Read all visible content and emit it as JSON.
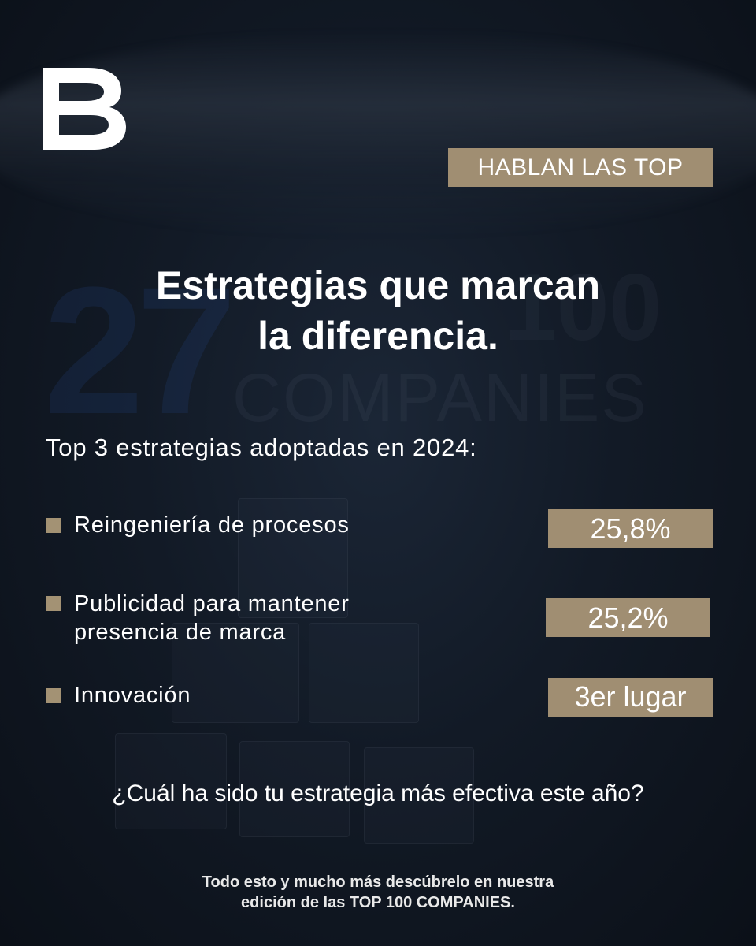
{
  "logo_letter": "B",
  "tag": "HABLAN LAS TOP",
  "title_line1": "Estrategias que marcan",
  "title_line2": "la diferencia.",
  "background_text": {
    "number": "27",
    "top100": "100",
    "companies": "COMPANIES"
  },
  "subtitle": "Top 3 estrategias adoptadas en 2024:",
  "strategies": [
    {
      "label_line1": "Reingeniería de procesos",
      "label_line2": "",
      "value": "25,8%"
    },
    {
      "label_line1": "Publicidad para mantener",
      "label_line2": "presencia de marca",
      "value": "25,2%"
    },
    {
      "label_line1": "Innovación",
      "label_line2": "",
      "value": "3er lugar"
    }
  ],
  "question": "¿Cuál ha sido tu estrategia más efectiva este año?",
  "footer_line1": "Todo esto y mucho más descúbrelo en nuestra",
  "footer_line2": "edición de las TOP 100 COMPANIES.",
  "colors": {
    "accent": "#a08e72",
    "background": "#121a26",
    "text": "#ffffff"
  }
}
